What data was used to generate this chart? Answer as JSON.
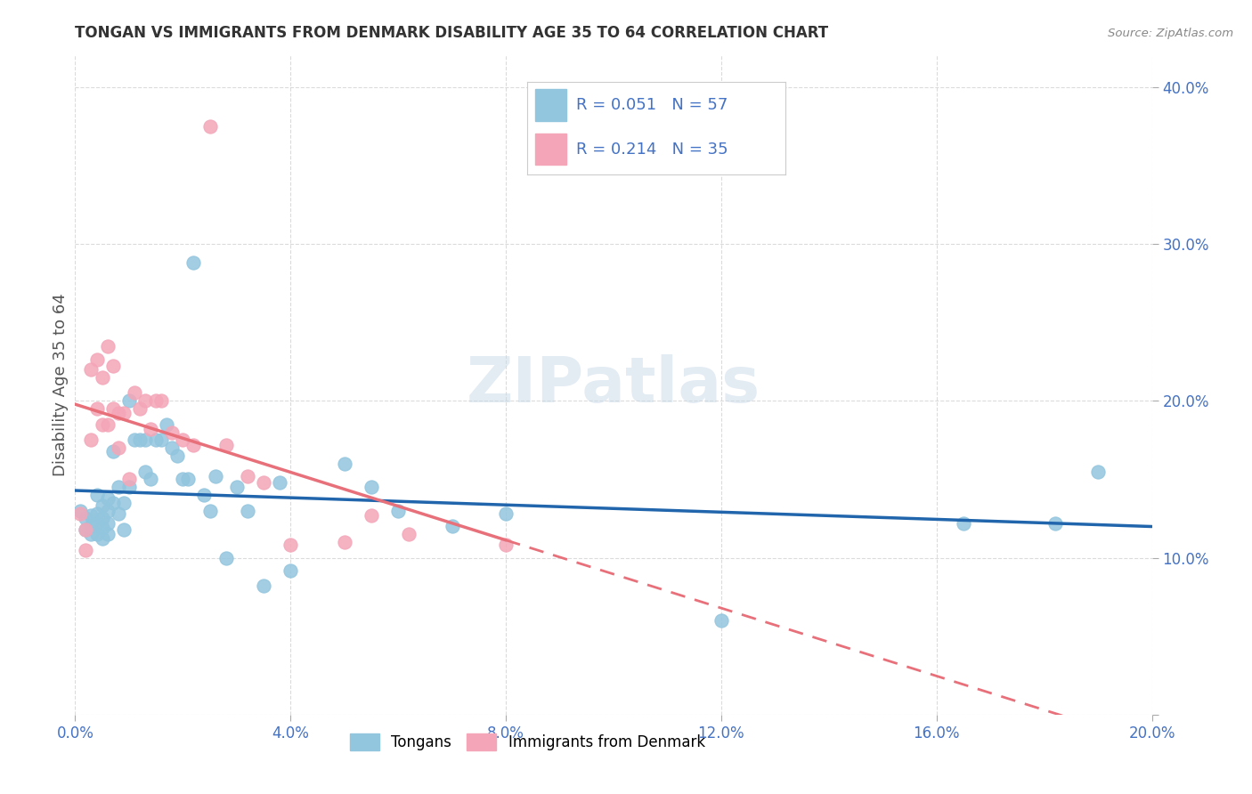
{
  "title": "TONGAN VS IMMIGRANTS FROM DENMARK DISABILITY AGE 35 TO 64 CORRELATION CHART",
  "source": "Source: ZipAtlas.com",
  "ylabel": "Disability Age 35 to 64",
  "xlabel": "",
  "xlim": [
    0.0,
    0.2
  ],
  "ylim": [
    0.0,
    0.42
  ],
  "xticks": [
    0.0,
    0.04,
    0.08,
    0.12,
    0.16,
    0.2
  ],
  "yticks": [
    0.0,
    0.1,
    0.2,
    0.3,
    0.4
  ],
  "legend_labels": [
    "Tongans",
    "Immigrants from Denmark"
  ],
  "blue_color": "#92c5de",
  "pink_color": "#f4a6b8",
  "blue_line_color": "#2166ac",
  "pink_line_color": "#e8707a",
  "R_blue": 0.051,
  "N_blue": 57,
  "R_pink": 0.214,
  "N_pink": 35,
  "blue_points_x": [
    0.001,
    0.002,
    0.002,
    0.003,
    0.003,
    0.003,
    0.004,
    0.004,
    0.004,
    0.004,
    0.005,
    0.005,
    0.005,
    0.005,
    0.006,
    0.006,
    0.006,
    0.006,
    0.007,
    0.007,
    0.008,
    0.008,
    0.009,
    0.009,
    0.01,
    0.01,
    0.011,
    0.012,
    0.013,
    0.013,
    0.014,
    0.015,
    0.016,
    0.017,
    0.018,
    0.019,
    0.02,
    0.021,
    0.022,
    0.024,
    0.025,
    0.026,
    0.028,
    0.03,
    0.032,
    0.035,
    0.038,
    0.04,
    0.05,
    0.055,
    0.06,
    0.07,
    0.08,
    0.12,
    0.165,
    0.182,
    0.19
  ],
  "blue_points_y": [
    0.13,
    0.125,
    0.118,
    0.127,
    0.12,
    0.115,
    0.14,
    0.128,
    0.122,
    0.115,
    0.133,
    0.125,
    0.119,
    0.112,
    0.138,
    0.13,
    0.122,
    0.115,
    0.168,
    0.135,
    0.145,
    0.128,
    0.135,
    0.118,
    0.2,
    0.145,
    0.175,
    0.175,
    0.175,
    0.155,
    0.15,
    0.175,
    0.175,
    0.185,
    0.17,
    0.165,
    0.15,
    0.15,
    0.288,
    0.14,
    0.13,
    0.152,
    0.1,
    0.145,
    0.13,
    0.082,
    0.148,
    0.092,
    0.16,
    0.145,
    0.13,
    0.12,
    0.128,
    0.06,
    0.122,
    0.122,
    0.155
  ],
  "pink_points_x": [
    0.001,
    0.002,
    0.002,
    0.003,
    0.003,
    0.004,
    0.004,
    0.005,
    0.005,
    0.006,
    0.006,
    0.007,
    0.007,
    0.008,
    0.008,
    0.009,
    0.01,
    0.011,
    0.012,
    0.013,
    0.014,
    0.015,
    0.016,
    0.018,
    0.02,
    0.022,
    0.025,
    0.028,
    0.032,
    0.035,
    0.04,
    0.05,
    0.055,
    0.062,
    0.08
  ],
  "pink_points_y": [
    0.128,
    0.118,
    0.105,
    0.22,
    0.175,
    0.226,
    0.195,
    0.215,
    0.185,
    0.235,
    0.185,
    0.222,
    0.195,
    0.192,
    0.17,
    0.192,
    0.15,
    0.205,
    0.195,
    0.2,
    0.182,
    0.2,
    0.2,
    0.18,
    0.175,
    0.172,
    0.375,
    0.172,
    0.152,
    0.148,
    0.108,
    0.11,
    0.127,
    0.115,
    0.108
  ],
  "background_color": "#ffffff",
  "grid_color": "#cccccc",
  "watermark_text": "ZIPatlas",
  "watermark_color": "#c8d8e8"
}
